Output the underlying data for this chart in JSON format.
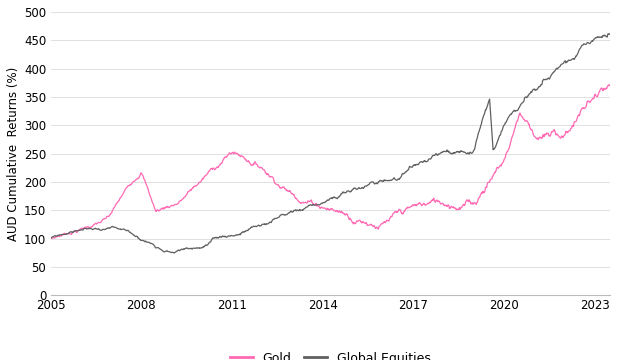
{
  "title": "",
  "ylabel": "AUD Cumulative  Returns (%)",
  "xlabel": "",
  "ylim": [
    0,
    500
  ],
  "yticks": [
    0,
    50,
    100,
    150,
    200,
    250,
    300,
    350,
    400,
    450,
    500
  ],
  "xticks": [
    2005,
    2008,
    2011,
    2014,
    2017,
    2020,
    2023
  ],
  "gold_color": "#FF69B4",
  "equities_color": "#606060",
  "background_color": "#ffffff",
  "legend_gold": "Gold",
  "legend_equities": "Global Equities",
  "linewidth": 0.9,
  "grid_color": "#e0e0e0"
}
